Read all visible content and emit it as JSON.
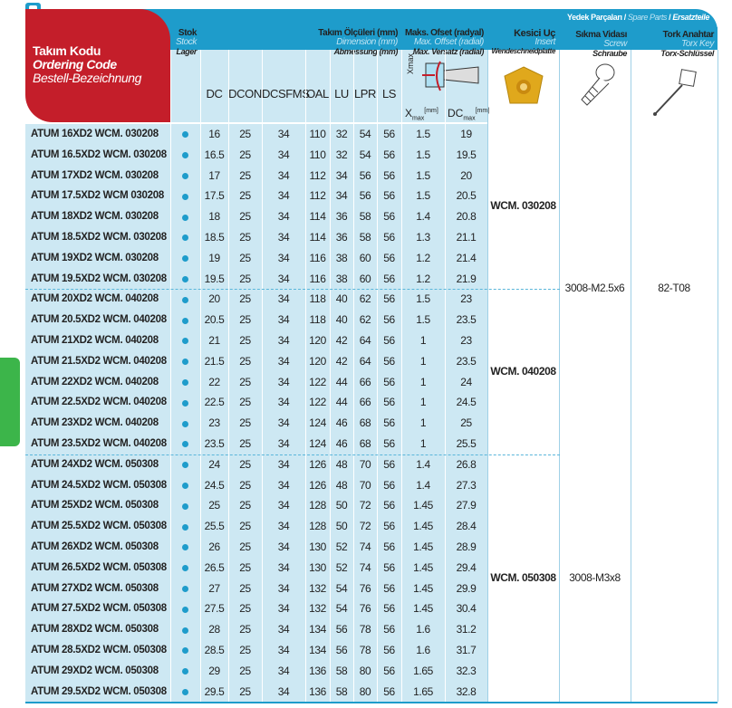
{
  "header": {
    "code": {
      "tr": "Takım Kodu",
      "en": "Ordering Code",
      "de": "Bestell-Bezeichnung"
    },
    "stock": {
      "tr": "Stok",
      "en": "Stock",
      "de": "Lager"
    },
    "dimension": {
      "tr": "Takım Ölçüleri (mm)",
      "en": "Dimension (mm)",
      "de": "Abmessung (mm)"
    },
    "offset": {
      "tr": "Maks. Ofset (radyal)",
      "en": "Max. Offset (radial)",
      "de": "Max. Versatz (radial)"
    },
    "insert": {
      "tr": "Kesici Uç",
      "en": "Insert",
      "de": "Wendeschneidplatte"
    },
    "spare": {
      "tr": "Yedek Parçaları",
      "en": "Spare Parts",
      "de": "Ersatzteile",
      "sep": "/"
    },
    "screw": {
      "tr": "Sıkma Vidası",
      "en": "Screw",
      "de": "Schraube"
    },
    "key": {
      "tr": "Tork Anahtar",
      "en": "Torx Key",
      "de": "Torx-Schlüssel"
    },
    "columns": [
      "DC",
      "DCON",
      "DCSFMS",
      "OAL",
      "LU",
      "LPR",
      "LS"
    ],
    "xmax": "X",
    "xmax_sub": "max",
    "xmax_unit": "[mm]",
    "dcmax": "DC",
    "dcmax_sub": "max",
    "dcmax_unit": "[mm]"
  },
  "colors": {
    "header_blue": "#1e9ccb",
    "brand_red": "#c41e2a",
    "row_blue": "#cde8f3",
    "tab_green": "#3cb54a"
  },
  "rows": [
    [
      "ATUM  16XD2  WCM.  030208",
      "16",
      "25",
      "34",
      "110",
      "32",
      "54",
      "56",
      "1.5",
      "19"
    ],
    [
      "ATUM 16.5XD2 WCM. 030208",
      "16.5",
      "25",
      "34",
      "110",
      "32",
      "54",
      "56",
      "1.5",
      "19.5"
    ],
    [
      "ATUM  17XD2  WCM.  030208",
      "17",
      "25",
      "34",
      "112",
      "34",
      "56",
      "56",
      "1.5",
      "20"
    ],
    [
      "ATUM 17.5XD2 WCM 030208",
      "17.5",
      "25",
      "34",
      "112",
      "34",
      "56",
      "56",
      "1.5",
      "20.5"
    ],
    [
      "ATUM  18XD2  WCM.  030208",
      "18",
      "25",
      "34",
      "114",
      "36",
      "58",
      "56",
      "1.4",
      "20.8"
    ],
    [
      "ATUM 18.5XD2 WCM. 030208",
      "18.5",
      "25",
      "34",
      "114",
      "36",
      "58",
      "56",
      "1.3",
      "21.1"
    ],
    [
      "ATUM  19XD2  WCM.  030208",
      "19",
      "25",
      "34",
      "116",
      "38",
      "60",
      "56",
      "1.2",
      "21.4"
    ],
    [
      "ATUM 19.5XD2 WCM. 030208",
      "19.5",
      "25",
      "34",
      "116",
      "38",
      "60",
      "56",
      "1.2",
      "21.9"
    ],
    [
      "ATUM  20XD2  WCM.  040208",
      "20",
      "25",
      "34",
      "118",
      "40",
      "62",
      "56",
      "1.5",
      "23"
    ],
    [
      "ATUM 20.5XD2 WCM. 040208",
      "20.5",
      "25",
      "34",
      "118",
      "40",
      "62",
      "56",
      "1.5",
      "23.5"
    ],
    [
      "ATUM  21XD2  WCM.  040208",
      "21",
      "25",
      "34",
      "120",
      "42",
      "64",
      "56",
      "1",
      "23"
    ],
    [
      "ATUM 21.5XD2 WCM. 040208",
      "21.5",
      "25",
      "34",
      "120",
      "42",
      "64",
      "56",
      "1",
      "23.5"
    ],
    [
      "ATUM  22XD2  WCM.  040208",
      "22",
      "25",
      "34",
      "122",
      "44",
      "66",
      "56",
      "1",
      "24"
    ],
    [
      "ATUM 22.5XD2 WCM. 040208",
      "22.5",
      "25",
      "34",
      "122",
      "44",
      "66",
      "56",
      "1",
      "24.5"
    ],
    [
      "ATUM  23XD2  WCM.  040208",
      "23",
      "25",
      "34",
      "124",
      "46",
      "68",
      "56",
      "1",
      "25"
    ],
    [
      "ATUM 23.5XD2 WCM. 040208",
      "23.5",
      "25",
      "34",
      "124",
      "46",
      "68",
      "56",
      "1",
      "25.5"
    ],
    [
      "ATUM  24XD2  WCM.  050308",
      "24",
      "25",
      "34",
      "126",
      "48",
      "70",
      "56",
      "1.4",
      "26.8"
    ],
    [
      "ATUM 24.5XD2 WCM. 050308",
      "24.5",
      "25",
      "34",
      "126",
      "48",
      "70",
      "56",
      "1.4",
      "27.3"
    ],
    [
      "ATUM  25XD2  WCM.  050308",
      "25",
      "25",
      "34",
      "128",
      "50",
      "72",
      "56",
      "1.45",
      "27.9"
    ],
    [
      "ATUM 25.5XD2 WCM. 050308",
      "25.5",
      "25",
      "34",
      "128",
      "50",
      "72",
      "56",
      "1.45",
      "28.4"
    ],
    [
      "ATUM  26XD2  WCM.  050308",
      "26",
      "25",
      "34",
      "130",
      "52",
      "74",
      "56",
      "1.45",
      "28.9"
    ],
    [
      "ATUM 26.5XD2 WCM. 050308",
      "26.5",
      "25",
      "34",
      "130",
      "52",
      "74",
      "56",
      "1.45",
      "29.4"
    ],
    [
      "ATUM  27XD2  WCM.  050308",
      "27",
      "25",
      "34",
      "132",
      "54",
      "76",
      "56",
      "1.45",
      "29.9"
    ],
    [
      "ATUM 27.5XD2 WCM. 050308",
      "27.5",
      "25",
      "34",
      "132",
      "54",
      "76",
      "56",
      "1.45",
      "30.4"
    ],
    [
      "ATUM  28XD2  WCM.  050308",
      "28",
      "25",
      "34",
      "134",
      "56",
      "78",
      "56",
      "1.6",
      "31.2"
    ],
    [
      "ATUM 28.5XD2 WCM. 050308",
      "28.5",
      "25",
      "34",
      "134",
      "56",
      "78",
      "56",
      "1.6",
      "31.7"
    ],
    [
      "ATUM  29XD2  WCM.  050308",
      "29",
      "25",
      "34",
      "136",
      "58",
      "80",
      "56",
      "1.65",
      "32.3"
    ],
    [
      "ATUM 29.5XD2 WCM. 050308",
      "29.5",
      "25",
      "34",
      "136",
      "58",
      "80",
      "56",
      "1.65",
      "32.8"
    ]
  ],
  "inserts": [
    "WCM. 030208",
    "WCM. 040208",
    "WCM. 050308"
  ],
  "screws": [
    "3008-M2.5x6",
    "3008-M3x8"
  ],
  "key": "82-T08"
}
